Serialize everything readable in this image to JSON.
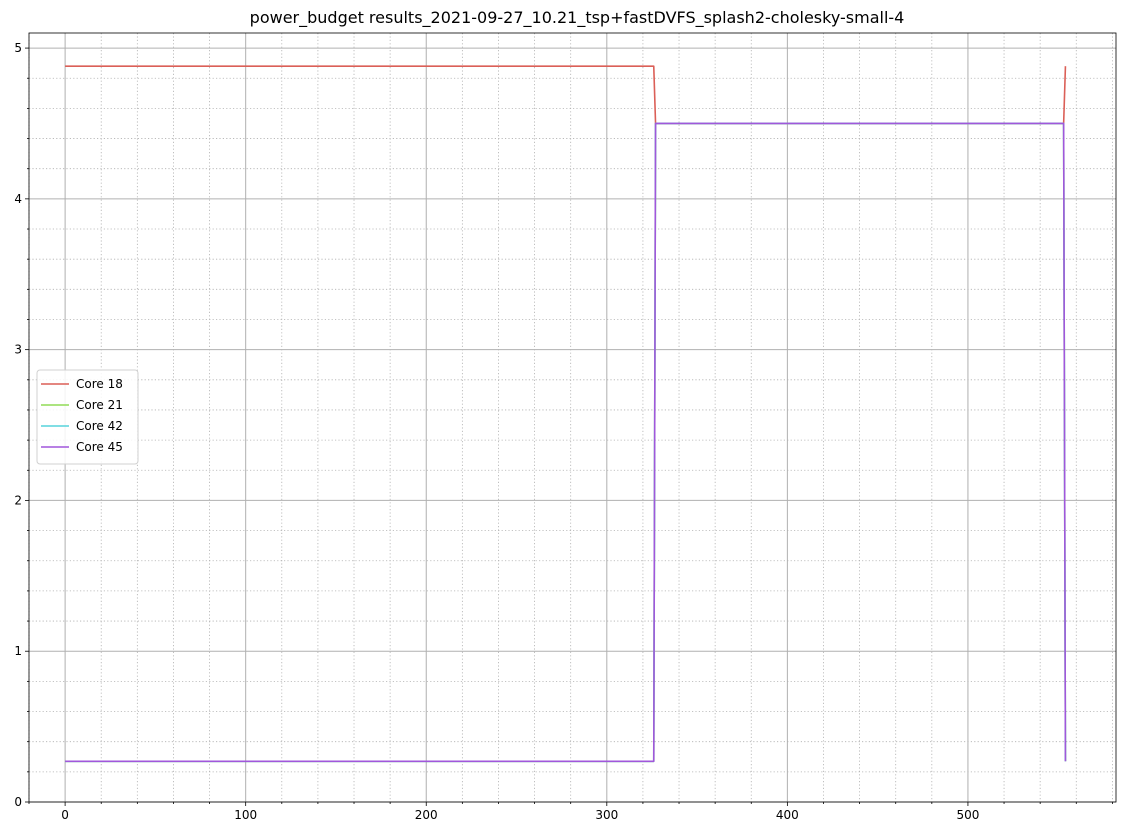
{
  "chart_data": {
    "type": "line",
    "title": "power_budget results_2021-09-27_10.21_tsp+fastDVFS_splash2-cholesky-small-4",
    "xlabel": "",
    "ylabel": "",
    "xlim": [
      -20,
      582
    ],
    "ylim": [
      0,
      5.1
    ],
    "x_major_ticks": [
      0,
      100,
      200,
      300,
      400,
      500
    ],
    "x_minor_step": 20,
    "y_major_ticks": [
      0,
      1,
      2,
      3,
      4,
      5
    ],
    "y_minor_step": 0.2,
    "grid": {
      "major": true,
      "minor": true
    },
    "legend_position": "center-left",
    "series": [
      {
        "name": "Core 18",
        "color": "#db5f57",
        "points": [
          [
            0,
            4.88
          ],
          [
            326,
            4.88
          ],
          [
            327,
            4.5
          ],
          [
            553,
            4.5
          ],
          [
            554,
            4.88
          ]
        ]
      },
      {
        "name": "Core 21",
        "color": "#91db57",
        "points": [
          [
            0,
            0.27
          ],
          [
            326,
            0.27
          ],
          [
            327,
            4.5
          ],
          [
            553,
            4.5
          ],
          [
            554,
            0.27
          ]
        ]
      },
      {
        "name": "Core 42",
        "color": "#57d3db",
        "points": [
          [
            0,
            0.27
          ],
          [
            326,
            0.27
          ],
          [
            327,
            4.5
          ],
          [
            553,
            4.5
          ],
          [
            554,
            0.27
          ]
        ]
      },
      {
        "name": "Core 45",
        "color": "#a157db",
        "points": [
          [
            0,
            0.27
          ],
          [
            326,
            0.27
          ],
          [
            327,
            4.5
          ],
          [
            553,
            4.5
          ],
          [
            554,
            0.27
          ]
        ]
      }
    ]
  }
}
